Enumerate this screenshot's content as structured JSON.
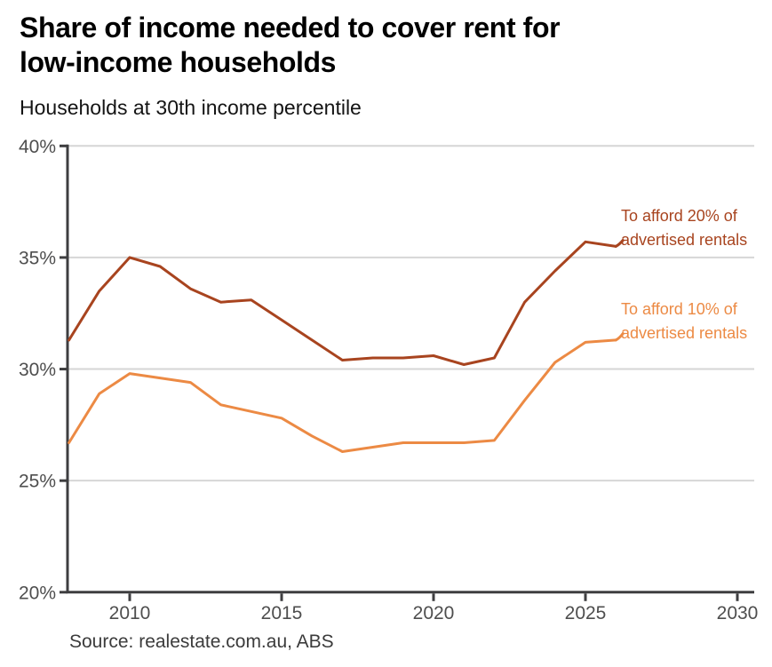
{
  "header": {
    "title_lines": [
      "Share of income needed to cover rent for",
      "low-income households"
    ],
    "subtitle": "Households at 30th income percentile"
  },
  "chart_data": {
    "type": "line",
    "title": "Share of income needed to cover rent for low-income households",
    "subtitle": "Households at 30th income percentile",
    "x": [
      2008,
      2009,
      2010,
      2011,
      2012,
      2013,
      2014,
      2015,
      2016,
      2017,
      2018,
      2019,
      2020,
      2021,
      2022,
      2023,
      2024,
      2025,
      2026
    ],
    "series": [
      {
        "name": "To afford 20% of advertised rentals",
        "label_lines": [
          "To afford 20% of",
          "advertised rentals"
        ],
        "color": "#A8441F",
        "values": [
          31.3,
          33.5,
          35.0,
          34.6,
          33.6,
          33.0,
          33.1,
          32.2,
          31.3,
          30.4,
          30.5,
          30.5,
          30.6,
          30.2,
          30.5,
          33.0,
          34.4,
          35.7,
          35.5
        ]
      },
      {
        "name": "To afford 10% of advertised rentals",
        "label_lines": [
          "To afford 10% of",
          "advertised rentals"
        ],
        "color": "#EC8A44",
        "values": [
          26.7,
          28.9,
          29.8,
          29.6,
          29.4,
          28.4,
          28.1,
          27.8,
          27.0,
          26.3,
          26.5,
          26.7,
          26.7,
          26.7,
          26.8,
          28.6,
          30.3,
          31.2,
          31.3
        ]
      }
    ],
    "ylim": [
      20,
      40
    ],
    "xlim": [
      2008,
      2030.5
    ],
    "yticks": [
      20,
      25,
      30,
      35,
      40
    ],
    "ytick_labels": [
      "20%",
      "25%",
      "30%",
      "35%",
      "40%"
    ],
    "xticks": [
      2010,
      2015,
      2020,
      2025,
      2030
    ],
    "xtick_labels": [
      "2010",
      "2015",
      "2020",
      "2025",
      "2030"
    ],
    "grid": "horizontal",
    "legend": "inline-annotations"
  },
  "footer": {
    "source": "Source: realestate.com.au, ABS"
  },
  "colors": {
    "background": "#FFFFFF",
    "axis": "#3E3E40",
    "grid": "#D6D6D6",
    "tick_label": "#4E4E4E",
    "title": "#000000",
    "subtitle": "#141414",
    "source": "#3B3B3B",
    "series_20pct": "#A8441F",
    "series_10pct": "#EC8A44"
  }
}
